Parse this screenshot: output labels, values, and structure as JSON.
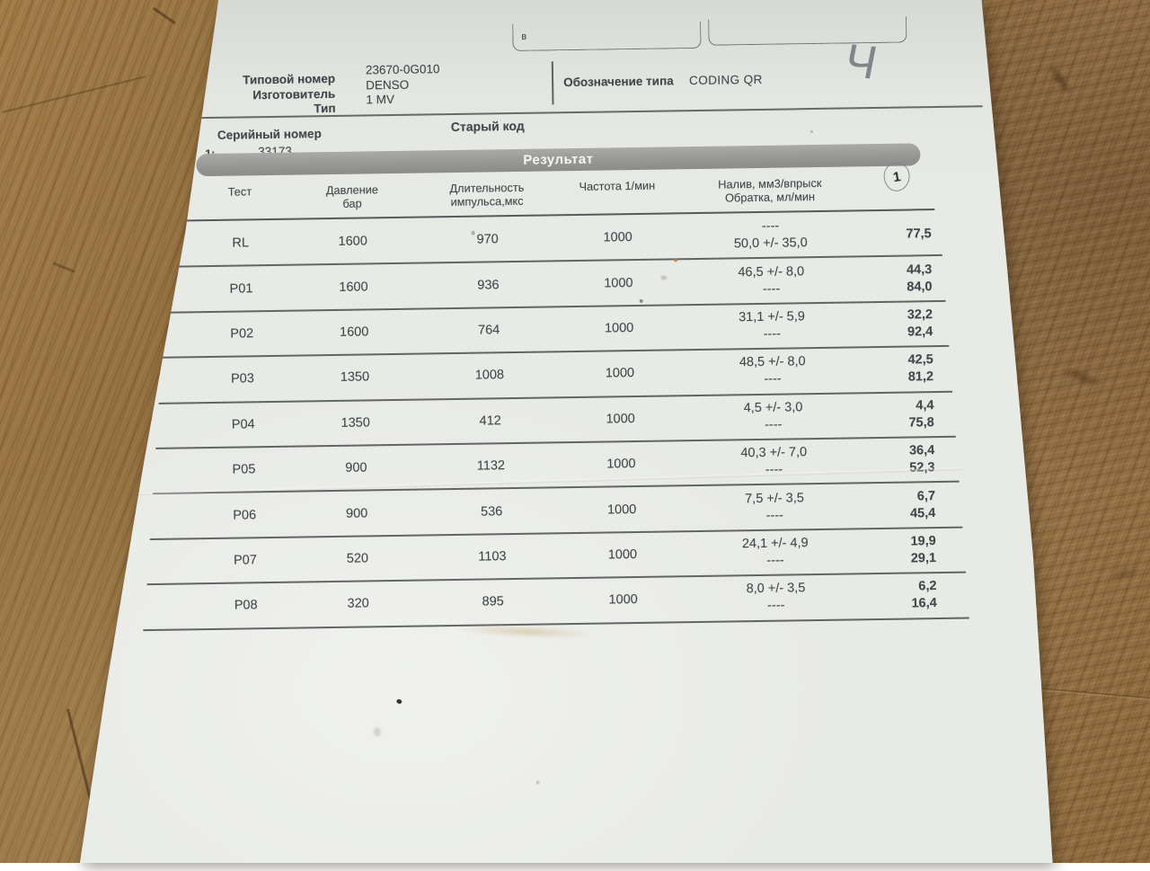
{
  "photo": {
    "scene": "printed test report lying on wooden table",
    "colors": {
      "wood": "#93703f",
      "paper": "#e8eae6",
      "banner_gray": "#979795",
      "print_ink": "#43474b",
      "pencil": "#8a9096",
      "stain_orange": "#c07a35"
    }
  },
  "document": {
    "top_boxes": {
      "left_label": "в"
    },
    "header": {
      "field_labels": [
        "Типовой номер",
        "Изготовитель",
        "Тип"
      ],
      "field_values": [
        "23670-0G010",
        "DENSO",
        "1 MV"
      ],
      "type_label": "Обозначение типа",
      "type_value": "CODING QR",
      "handwritten_mark": "Ч"
    },
    "serial_section": {
      "serial_label": "Серийный номер",
      "old_code_label": "Старый код",
      "row_index": "1:",
      "serial_value": "33173"
    },
    "result_banner": "Результат",
    "page_number": "1",
    "table": {
      "headers": [
        {
          "line1": "Тест",
          "line2": ""
        },
        {
          "line1": "Давление",
          "line2": "бар"
        },
        {
          "line1": "Длительность",
          "line2": "импульса,мкс"
        },
        {
          "line1": "Частота 1/мин",
          "line2": ""
        },
        {
          "line1": "Налив, мм3/впрыск",
          "line2": "Обратка, мл/мин"
        },
        {
          "line1": "",
          "line2": ""
        }
      ],
      "rows": [
        {
          "test": "RL",
          "pressure": "1600",
          "duration": "970",
          "frequency": "1000",
          "spec1": "----",
          "spec2": "50,0 +/- 35,0",
          "meas1": "",
          "meas2": "77,5"
        },
        {
          "test": "P01",
          "pressure": "1600",
          "duration": "936",
          "frequency": "1000",
          "spec1": "46,5 +/- 8,0",
          "spec2": "----",
          "meas1": "44,3",
          "meas2": "84,0"
        },
        {
          "test": "P02",
          "pressure": "1600",
          "duration": "764",
          "frequency": "1000",
          "spec1": "31,1 +/- 5,9",
          "spec2": "----",
          "meas1": "32,2",
          "meas2": "92,4"
        },
        {
          "test": "P03",
          "pressure": "1350",
          "duration": "1008",
          "frequency": "1000",
          "spec1": "48,5 +/- 8,0",
          "spec2": "----",
          "meas1": "42,5",
          "meas2": "81,2"
        },
        {
          "test": "P04",
          "pressure": "1350",
          "duration": "412",
          "frequency": "1000",
          "spec1": "4,5 +/- 3,0",
          "spec2": "----",
          "meas1": "4,4",
          "meas2": "75,8"
        },
        {
          "test": "P05",
          "pressure": "900",
          "duration": "1132",
          "frequency": "1000",
          "spec1": "40,3 +/- 7,0",
          "spec2": "----",
          "meas1": "36,4",
          "meas2": "52,3"
        },
        {
          "test": "P06",
          "pressure": "900",
          "duration": "536",
          "frequency": "1000",
          "spec1": "7,5 +/- 3,5",
          "spec2": "----",
          "meas1": "6,7",
          "meas2": "45,4"
        },
        {
          "test": "P07",
          "pressure": "520",
          "duration": "1103",
          "frequency": "1000",
          "spec1": "24,1 +/- 4,9",
          "spec2": "----",
          "meas1": "19,9",
          "meas2": "29,1"
        },
        {
          "test": "P08",
          "pressure": "320",
          "duration": "895",
          "frequency": "1000",
          "spec1": "8,0 +/- 3,5",
          "spec2": "----",
          "meas1": "6,2",
          "meas2": "16,4"
        }
      ]
    }
  }
}
